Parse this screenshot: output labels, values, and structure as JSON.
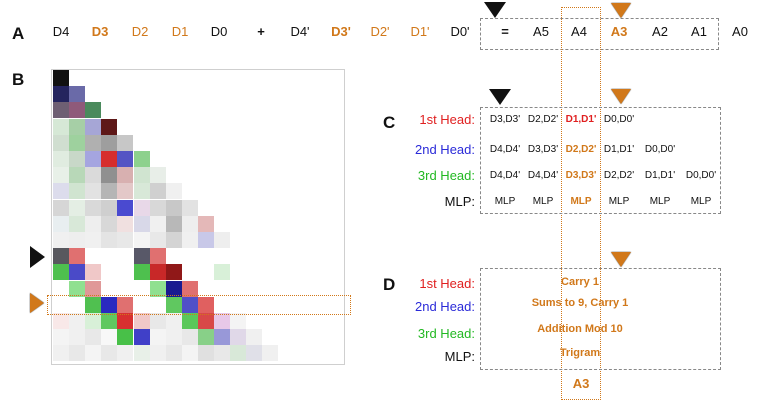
{
  "panel_labels": {
    "a": "A",
    "b": "B",
    "c": "C",
    "d": "D"
  },
  "row_a": {
    "tokens": [
      {
        "text": "D4",
        "style": "plain"
      },
      {
        "text": "D3",
        "style": "bold"
      },
      {
        "text": "D2",
        "style": "orange"
      },
      {
        "text": "D1",
        "style": "orange"
      },
      {
        "text": "D0",
        "style": "plain"
      },
      {
        "text": "+",
        "style": "plainbold"
      },
      {
        "text": "D4'",
        "style": "plain"
      },
      {
        "text": "D3'",
        "style": "bold"
      },
      {
        "text": "D2'",
        "style": "orange"
      },
      {
        "text": "D1'",
        "style": "orange"
      },
      {
        "text": "D0'",
        "style": "plain"
      },
      {
        "text": "=",
        "style": "plainbold"
      },
      {
        "text": "A5",
        "style": "plain"
      },
      {
        "text": "A4",
        "style": "plain"
      },
      {
        "text": "A3",
        "style": "bold"
      },
      {
        "text": "A2",
        "style": "plain"
      },
      {
        "text": "A1",
        "style": "plain"
      },
      {
        "text": "A0",
        "style": "plain"
      }
    ]
  },
  "panel_c": {
    "row_labels": [
      {
        "text": "1st Head:",
        "color": "#e02020"
      },
      {
        "text": "2nd Head:",
        "color": "#2a2ad8"
      },
      {
        "text": "3rd Head:",
        "color": "#22b822"
      },
      {
        "text": "MLP:",
        "color": "#111111"
      }
    ],
    "rows": [
      [
        "D3,D3'",
        "D2,D2'",
        "D1,D1'",
        "D0,D0'",
        "",
        ""
      ],
      [
        "D4,D4'",
        "D3,D3'",
        "D2,D2'",
        "D1,D1'",
        "D0,D0'",
        ""
      ],
      [
        "D4,D4'",
        "D4,D4'",
        "D3,D3'",
        "D2,D2'",
        "D1,D1'",
        "D0,D0'"
      ],
      [
        "MLP",
        "MLP",
        "MLP",
        "MLP",
        "MLP",
        "MLP"
      ]
    ]
  },
  "panel_d": {
    "row_labels": [
      {
        "text": "1st Head:",
        "color": "#e02020"
      },
      {
        "text": "2nd Head:",
        "color": "#2a2ad8"
      },
      {
        "text": "3rd Head:",
        "color": "#22b822"
      },
      {
        "text": "MLP:",
        "color": "#111111"
      }
    ],
    "patterns": [
      "Carry 1",
      "Sums to 9, Carry 1",
      "Addition Mod 10",
      "Trigram"
    ],
    "output": "A3"
  },
  "colors": {
    "highlight": "#d1781a",
    "head1": "#e02020",
    "head2": "#2a2ad8",
    "head3": "#22b822"
  },
  "heatmap": {
    "size": 18,
    "cells": [
      [
        0,
        0,
        "#111111"
      ],
      [
        1,
        0,
        "#24245e"
      ],
      [
        1,
        1,
        "#6a6aa8"
      ],
      [
        2,
        0,
        "#6e5f73"
      ],
      [
        2,
        1,
        "#8f5a7a"
      ],
      [
        2,
        2,
        "#4a8a5c"
      ],
      [
        3,
        0,
        "#d6e8d6"
      ],
      [
        3,
        1,
        "#a6cfa6"
      ],
      [
        3,
        2,
        "#a6a6d6"
      ],
      [
        3,
        3,
        "#5e1818"
      ],
      [
        4,
        0,
        "#d0ded0"
      ],
      [
        4,
        1,
        "#9ed19e"
      ],
      [
        4,
        2,
        "#b0b0b0"
      ],
      [
        4,
        3,
        "#9e9e9e"
      ],
      [
        4,
        4,
        "#c7c7c7"
      ],
      [
        5,
        0,
        "#e0ece0"
      ],
      [
        5,
        1,
        "#c8d8c8"
      ],
      [
        5,
        2,
        "#a5a5e0"
      ],
      [
        5,
        3,
        "#d62d2d"
      ],
      [
        5,
        4,
        "#5454c4"
      ],
      [
        5,
        5,
        "#8dd18d"
      ],
      [
        6,
        0,
        "#e8f0e8"
      ],
      [
        6,
        1,
        "#b8d8b8"
      ],
      [
        6,
        2,
        "#dadada"
      ],
      [
        6,
        3,
        "#909090"
      ],
      [
        6,
        4,
        "#d8b0b0"
      ],
      [
        6,
        5,
        "#d0e4d0"
      ],
      [
        6,
        6,
        "#e8eee8"
      ],
      [
        7,
        0,
        "#dcdcec"
      ],
      [
        7,
        1,
        "#d0e4d0"
      ],
      [
        7,
        2,
        "#e2e2e2"
      ],
      [
        7,
        3,
        "#b5b5b5"
      ],
      [
        7,
        4,
        "#e3c8c8"
      ],
      [
        7,
        5,
        "#d8e8d8"
      ],
      [
        7,
        6,
        "#d0d0d0"
      ],
      [
        7,
        7,
        "#f0f0f0"
      ],
      [
        8,
        0,
        "#d6d6d6"
      ],
      [
        8,
        1,
        "#e4eee4"
      ],
      [
        8,
        2,
        "#d9d9d9"
      ],
      [
        8,
        3,
        "#cfcfcf"
      ],
      [
        8,
        4,
        "#4a4ad0"
      ],
      [
        8,
        5,
        "#e8d8e8"
      ],
      [
        8,
        6,
        "#d8d8d8"
      ],
      [
        8,
        7,
        "#c8c8c8"
      ],
      [
        8,
        8,
        "#e2e2e2"
      ],
      [
        9,
        0,
        "#e8eef0"
      ],
      [
        9,
        1,
        "#d8e8d8"
      ],
      [
        9,
        2,
        "#eeeeee"
      ],
      [
        9,
        3,
        "#d8d8d8"
      ],
      [
        9,
        4,
        "#f0e0e0"
      ],
      [
        9,
        5,
        "#d8d8e8"
      ],
      [
        9,
        6,
        "#f0f0f0"
      ],
      [
        9,
        7,
        "#b8b8b8"
      ],
      [
        9,
        8,
        "#eeeeee"
      ],
      [
        9,
        9,
        "#e4b8b8"
      ],
      [
        10,
        0,
        "#f0f0f0"
      ],
      [
        10,
        1,
        "#eeeeee"
      ],
      [
        10,
        2,
        "#f0f0f0"
      ],
      [
        10,
        3,
        "#e4e4e4"
      ],
      [
        10,
        4,
        "#e8e8e8"
      ],
      [
        10,
        5,
        "#f4f4f4"
      ],
      [
        10,
        6,
        "#e8e8e8"
      ],
      [
        10,
        7,
        "#d4d4d4"
      ],
      [
        10,
        8,
        "#f0f0f0"
      ],
      [
        10,
        9,
        "#c8c8e8"
      ],
      [
        10,
        10,
        "#eeeeee"
      ],
      [
        11,
        0,
        "#58585e"
      ],
      [
        11,
        1,
        "#e07070"
      ],
      [
        11,
        5,
        "#585868"
      ],
      [
        11,
        6,
        "#e07070"
      ],
      [
        12,
        0,
        "#4ec04e"
      ],
      [
        12,
        1,
        "#4a4ac8"
      ],
      [
        12,
        2,
        "#f0c8c8"
      ],
      [
        12,
        5,
        "#4ec04e"
      ],
      [
        12,
        6,
        "#c82828"
      ],
      [
        12,
        7,
        "#901818"
      ],
      [
        12,
        10,
        "#d8f0d8"
      ],
      [
        13,
        1,
        "#90e090"
      ],
      [
        13,
        2,
        "#e09898"
      ],
      [
        13,
        6,
        "#90e090"
      ],
      [
        13,
        7,
        "#1a1a90"
      ],
      [
        13,
        8,
        "#e07070"
      ],
      [
        14,
        2,
        "#50c050"
      ],
      [
        14,
        3,
        "#2a2ac0"
      ],
      [
        14,
        4,
        "#e07070"
      ],
      [
        14,
        7,
        "#60c860"
      ],
      [
        14,
        8,
        "#5050c8"
      ],
      [
        14,
        9,
        "#e06060"
      ],
      [
        15,
        0,
        "#f8e8e8"
      ],
      [
        15,
        1,
        "#f0f0f0"
      ],
      [
        15,
        2,
        "#d8f0d8"
      ],
      [
        15,
        3,
        "#60c860"
      ],
      [
        15,
        4,
        "#d83030"
      ],
      [
        15,
        5,
        "#f0c8c8"
      ],
      [
        15,
        6,
        "#e8e8e8"
      ],
      [
        15,
        7,
        "#f0f0f0"
      ],
      [
        15,
        8,
        "#5ac85a"
      ],
      [
        15,
        9,
        "#d84848"
      ],
      [
        15,
        10,
        "#e8c8e8"
      ],
      [
        15,
        11,
        "#f4f4f4"
      ],
      [
        16,
        0,
        "#f4f4f4"
      ],
      [
        16,
        1,
        "#f0f0f0"
      ],
      [
        16,
        2,
        "#e8e8e8"
      ],
      [
        16,
        3,
        "#f8f8f8"
      ],
      [
        16,
        4,
        "#48c048"
      ],
      [
        16,
        5,
        "#4040c8"
      ],
      [
        16,
        6,
        "#f4f4f4"
      ],
      [
        16,
        7,
        "#f0f0f0"
      ],
      [
        16,
        8,
        "#e8e8e8"
      ],
      [
        16,
        9,
        "#88d088"
      ],
      [
        16,
        10,
        "#9898d8"
      ],
      [
        16,
        11,
        "#e0d8e8"
      ],
      [
        16,
        12,
        "#f0f0f0"
      ],
      [
        17,
        0,
        "#f0f0f0"
      ],
      [
        17,
        1,
        "#e8e8e8"
      ],
      [
        17,
        2,
        "#f4f4f4"
      ],
      [
        17,
        3,
        "#e8e8e8"
      ],
      [
        17,
        4,
        "#f0f0f0"
      ],
      [
        17,
        5,
        "#e8f0e8"
      ],
      [
        17,
        6,
        "#f0f0f0"
      ],
      [
        17,
        7,
        "#e8e8e8"
      ],
      [
        17,
        8,
        "#f4f4f4"
      ],
      [
        17,
        9,
        "#e0e0e0"
      ],
      [
        17,
        10,
        "#e8e8e8"
      ],
      [
        17,
        11,
        "#d8e8d8"
      ],
      [
        17,
        12,
        "#e0e0e8"
      ],
      [
        17,
        13,
        "#f0f0f0"
      ]
    ]
  }
}
